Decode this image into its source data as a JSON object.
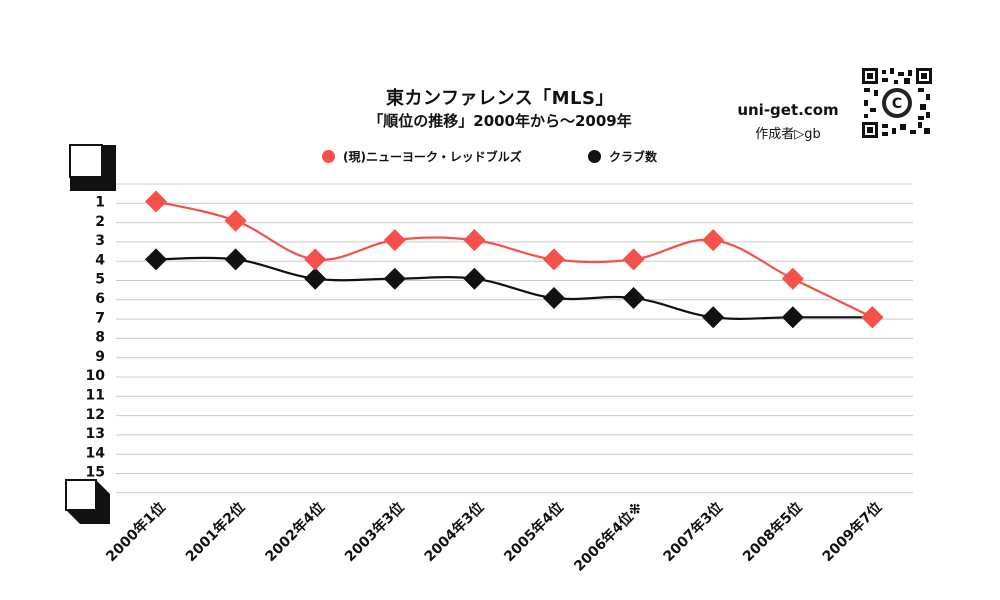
{
  "header": {
    "title": "東カンファレンス「MLS」",
    "subtitle": "「順位の推移」2000年から～2009年",
    "site": "uni-get.com",
    "author": "作成者▷gb"
  },
  "colors": {
    "team": "#f5504a",
    "clubs": "#111111",
    "grid": "#cccccc"
  },
  "chart_data": {
    "type": "line",
    "categories": [
      "2000年1位",
      "2001年2位",
      "2002年4位",
      "2003年3位",
      "2004年3位",
      "2005年4位",
      "2006年4位※",
      "2007年3位",
      "2008年5位",
      "2009年7位"
    ],
    "series": [
      {
        "name": "(現)ニューヨーク・レッドブルズ",
        "values": [
          1,
          2,
          4,
          3,
          3,
          4,
          4,
          3,
          5,
          7
        ],
        "color": "#f5504a"
      },
      {
        "name": "クラブ数",
        "values": [
          4,
          4,
          5,
          5,
          5,
          6,
          6,
          7,
          7,
          7
        ],
        "color": "#111111"
      }
    ],
    "y_ticks": [
      "1",
      "2",
      "3",
      "4",
      "5",
      "6",
      "7",
      "8",
      "9",
      "10",
      "11",
      "12",
      "13",
      "14",
      "15"
    ],
    "ylim": [
      1,
      15
    ],
    "y_inverted": true,
    "grid": true,
    "legend_position": "top-center",
    "marker": "diamond"
  }
}
